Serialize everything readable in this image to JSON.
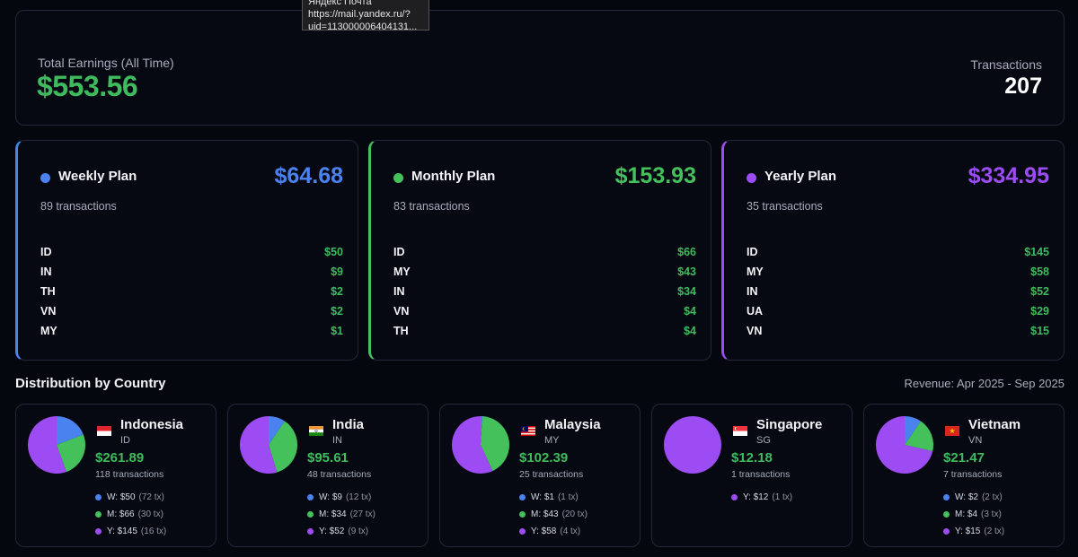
{
  "colors": {
    "weekly": "#4a82f0",
    "monthly": "#45c15c",
    "yearly": "#9c4cf2",
    "money": "#3fbb5e"
  },
  "tooltip": {
    "line1": "Яндекс Почта",
    "line2": "https://mail.yandex.ru/?",
    "line3": "uid=113000006404131..."
  },
  "summary": {
    "label": "Total Earnings (All Time)",
    "total": "$553.56",
    "transactions_label": "Transactions",
    "transactions_value": "207"
  },
  "plans": [
    {
      "name": "Weekly Plan",
      "amount": "$64.68",
      "count": "89 transactions",
      "color_key": "weekly",
      "rows": [
        {
          "code": "ID",
          "value": "$50"
        },
        {
          "code": "IN",
          "value": "$9"
        },
        {
          "code": "TH",
          "value": "$2"
        },
        {
          "code": "VN",
          "value": "$2"
        },
        {
          "code": "MY",
          "value": "$1"
        }
      ]
    },
    {
      "name": "Monthly Plan",
      "amount": "$153.93",
      "count": "83 transactions",
      "color_key": "monthly",
      "rows": [
        {
          "code": "ID",
          "value": "$66"
        },
        {
          "code": "MY",
          "value": "$43"
        },
        {
          "code": "IN",
          "value": "$34"
        },
        {
          "code": "VN",
          "value": "$4"
        },
        {
          "code": "TH",
          "value": "$4"
        }
      ]
    },
    {
      "name": "Yearly Plan",
      "amount": "$334.95",
      "count": "35 transactions",
      "color_key": "yearly",
      "rows": [
        {
          "code": "ID",
          "value": "$145"
        },
        {
          "code": "MY",
          "value": "$58"
        },
        {
          "code": "IN",
          "value": "$52"
        },
        {
          "code": "UA",
          "value": "$29"
        },
        {
          "code": "VN",
          "value": "$15"
        }
      ]
    }
  ],
  "distribution": {
    "title": "Distribution by Country",
    "range": "Revenue: Apr 2025 - Sep 2025"
  },
  "countries": [
    {
      "name": "Indonesia",
      "code": "ID",
      "flag": "id",
      "value": "$261.89",
      "transactions": "118 transactions",
      "breakdown": [
        {
          "plan": "weekly",
          "label": "W: $50",
          "tx": "(72 tx)",
          "amount": 50
        },
        {
          "plan": "monthly",
          "label": "M: $66",
          "tx": "(30 tx)",
          "amount": 66
        },
        {
          "plan": "yearly",
          "label": "Y: $145",
          "tx": "(16 tx)",
          "amount": 145
        }
      ]
    },
    {
      "name": "India",
      "code": "IN",
      "flag": "in",
      "value": "$95.61",
      "transactions": "48 transactions",
      "breakdown": [
        {
          "plan": "weekly",
          "label": "W: $9",
          "tx": "(12 tx)",
          "amount": 9
        },
        {
          "plan": "monthly",
          "label": "M: $34",
          "tx": "(27 tx)",
          "amount": 34
        },
        {
          "plan": "yearly",
          "label": "Y: $52",
          "tx": "(9 tx)",
          "amount": 52
        }
      ]
    },
    {
      "name": "Malaysia",
      "code": "MY",
      "flag": "my",
      "value": "$102.39",
      "transactions": "25 transactions",
      "breakdown": [
        {
          "plan": "weekly",
          "label": "W: $1",
          "tx": "(1 tx)",
          "amount": 1
        },
        {
          "plan": "monthly",
          "label": "M: $43",
          "tx": "(20 tx)",
          "amount": 43
        },
        {
          "plan": "yearly",
          "label": "Y: $58",
          "tx": "(4 tx)",
          "amount": 58
        }
      ]
    },
    {
      "name": "Singapore",
      "code": "SG",
      "flag": "sg",
      "value": "$12.18",
      "transactions": "1 transactions",
      "breakdown": [
        {
          "plan": "yearly",
          "label": "Y: $12",
          "tx": "(1 tx)",
          "amount": 12
        }
      ]
    },
    {
      "name": "Vietnam",
      "code": "VN",
      "flag": "vn",
      "value": "$21.47",
      "transactions": "7 transactions",
      "breakdown": [
        {
          "plan": "weekly",
          "label": "W: $2",
          "tx": "(2 tx)",
          "amount": 2
        },
        {
          "plan": "monthly",
          "label": "M: $4",
          "tx": "(3 tx)",
          "amount": 4
        },
        {
          "plan": "yearly",
          "label": "Y: $15",
          "tx": "(2 tx)",
          "amount": 15
        }
      ]
    }
  ]
}
